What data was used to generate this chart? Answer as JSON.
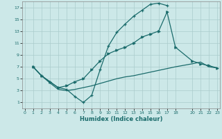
{
  "xlabel": "Humidex (Indice chaleur)",
  "bg_color": "#cce8e8",
  "grid_color": "#aacccc",
  "line_color": "#1a6b6b",
  "xlim": [
    -0.3,
    23.3
  ],
  "ylim": [
    0,
    18
  ],
  "xticks": [
    0,
    1,
    2,
    3,
    4,
    5,
    6,
    7,
    8,
    9,
    10,
    11,
    12,
    13,
    14,
    15,
    16,
    17,
    18,
    20,
    21,
    22,
    23
  ],
  "yticks": [
    1,
    3,
    5,
    7,
    9,
    11,
    13,
    15,
    17
  ],
  "line1_x": [
    1,
    2,
    3,
    4,
    5,
    6,
    7,
    8,
    9,
    10,
    11,
    12,
    13,
    14,
    15,
    16,
    17
  ],
  "line1_y": [
    7,
    5.5,
    4.5,
    3.5,
    3.2,
    2.0,
    1.0,
    2.2,
    6.5,
    10.5,
    12.8,
    14.2,
    15.5,
    16.5,
    17.5,
    17.7,
    17.3
  ],
  "line2_x": [
    1,
    2,
    3,
    4,
    5,
    6,
    7,
    8,
    9,
    10,
    11,
    12,
    13,
    14,
    15,
    16,
    17,
    18,
    20,
    21,
    22,
    23
  ],
  "line2_y": [
    7,
    5.5,
    4.5,
    3.5,
    3.8,
    4.5,
    5.0,
    6.5,
    8.0,
    9.2,
    9.8,
    10.3,
    11.0,
    12.0,
    12.5,
    13.0,
    16.2,
    10.3,
    8.0,
    7.5,
    7.2,
    6.8
  ],
  "line3_x": [
    1,
    2,
    3,
    4,
    5,
    6,
    7,
    8,
    9,
    10,
    11,
    12,
    13,
    14,
    15,
    16,
    17,
    18,
    20,
    21,
    22,
    23
  ],
  "line3_y": [
    7,
    5.5,
    4.3,
    3.2,
    3.0,
    3.2,
    3.5,
    3.8,
    4.2,
    4.6,
    5.0,
    5.3,
    5.5,
    5.8,
    6.1,
    6.4,
    6.7,
    7.0,
    7.5,
    7.8,
    7.0,
    6.8
  ]
}
